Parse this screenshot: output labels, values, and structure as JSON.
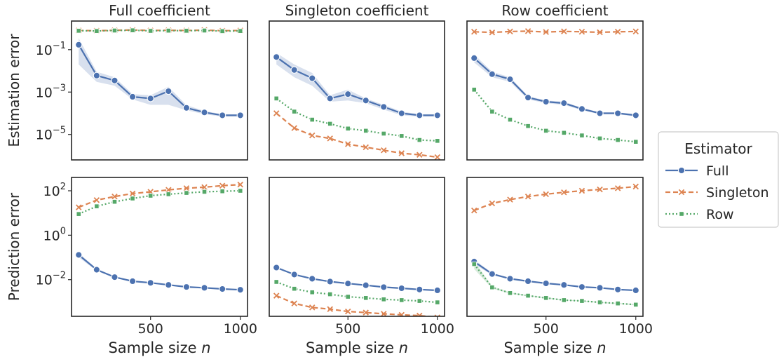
{
  "chart_data": {
    "type": "line",
    "x": [
      100,
      200,
      300,
      400,
      500,
      600,
      700,
      800,
      900,
      1000
    ],
    "xlabel": "Sample size n",
    "xticks": [
      500,
      1000
    ],
    "xlim": [
      60,
      1040
    ],
    "yscale": "log",
    "rows": [
      {
        "ylabel": "Estimation error",
        "ylog_lim": [
          -6.2,
          0.35
        ],
        "yticks": [
          {
            "exp": -1,
            "base": "10",
            "sup": "−1"
          },
          {
            "exp": -3,
            "base": "10",
            "sup": "−3"
          },
          {
            "exp": -5,
            "base": "10",
            "sup": "−5"
          }
        ]
      },
      {
        "ylabel": "Prediction error",
        "ylog_lim": [
          -3.65,
          2.6
        ],
        "yticks": [
          {
            "exp": 2,
            "base": "10",
            "sup": "2"
          },
          {
            "exp": 0,
            "base": "10",
            "sup": "0"
          },
          {
            "exp": -2,
            "base": "10",
            "sup": "−2"
          }
        ]
      }
    ],
    "columns": [
      "Full coefficient",
      "Singleton coefficient",
      "Row coefficient"
    ],
    "legend": {
      "title": "Estimator",
      "position": "center-right",
      "entries": [
        {
          "name": "Full",
          "color": "#4c72b0",
          "marker": "circle",
          "dash": "solid"
        },
        {
          "name": "Singleton",
          "color": "#dd8452",
          "marker": "x",
          "dash": "dashed"
        },
        {
          "name": "Row",
          "color": "#55a868",
          "marker": "square",
          "dash": "dotted"
        }
      ]
    },
    "panels": [
      {
        "row": 0,
        "col": 0,
        "series": [
          {
            "name": "Full",
            "values": [
              0.17,
              0.006,
              0.0035,
              0.0006,
              0.0005,
              0.0011,
              0.00018,
              0.00011,
              8e-05,
              8e-05
            ],
            "band_low": [
              0.02,
              0.003,
              0.002,
              0.00045,
              0.00025,
              0.00025,
              0.00014,
              9e-05,
              7e-05,
              7e-05
            ],
            "band_high": [
              0.35,
              0.009,
              0.005,
              0.0008,
              0.0007,
              0.0018,
              0.00024,
              0.00013,
              9e-05,
              9e-05
            ]
          },
          {
            "name": "Singleton",
            "values": [
              0.8,
              0.78,
              0.82,
              0.85,
              0.8,
              0.82,
              0.8,
              0.84,
              0.78,
              0.8
            ]
          },
          {
            "name": "Row",
            "values": [
              0.78,
              0.76,
              0.8,
              0.82,
              0.77,
              0.79,
              0.78,
              0.8,
              0.75,
              0.76
            ]
          }
        ]
      },
      {
        "row": 0,
        "col": 1,
        "series": [
          {
            "name": "Full",
            "values": [
              0.045,
              0.011,
              0.0045,
              0.0005,
              0.0008,
              0.0004,
              0.0002,
              0.0001,
              8e-05,
              8e-05
            ],
            "band_low": [
              0.02,
              0.005,
              0.002,
              0.00035,
              0.0004,
              0.0003,
              0.00015,
              8e-05,
              7e-05,
              7e-05
            ],
            "band_high": [
              0.07,
              0.02,
              0.008,
              0.0007,
              0.0013,
              0.0005,
              0.00025,
              0.00012,
              9e-05,
              9e-05
            ]
          },
          {
            "name": "Singleton",
            "values": [
              0.0001,
              2e-05,
              9e-06,
              6.5e-06,
              3.5e-06,
              2.5e-06,
              1.8e-06,
              1.3e-06,
              1.1e-06,
              8.5e-07
            ]
          },
          {
            "name": "Row",
            "values": [
              0.0005,
              0.00012,
              5e-05,
              3.2e-05,
              1.9e-05,
              1.5e-05,
              1.1e-05,
              8.5e-06,
              5.5e-06,
              5e-06
            ]
          }
        ]
      },
      {
        "row": 0,
        "col": 2,
        "series": [
          {
            "name": "Full",
            "values": [
              0.04,
              0.007,
              0.004,
              0.00055,
              0.00035,
              0.0003,
              0.00016,
              0.0001,
              0.0001,
              8e-05
            ],
            "band_low": [
              0.025,
              0.005,
              0.003,
              0.00045,
              0.0003,
              0.00025,
              0.00014,
              9e-05,
              9e-05,
              7e-05
            ],
            "band_high": [
              0.06,
              0.009,
              0.005,
              0.00065,
              0.0004,
              0.00035,
              0.00018,
              0.00011,
              0.00011,
              9e-05
            ]
          },
          {
            "name": "Singleton",
            "values": [
              0.7,
              0.65,
              0.72,
              0.75,
              0.68,
              0.73,
              0.7,
              0.66,
              0.7,
              0.72
            ]
          },
          {
            "name": "Row",
            "values": [
              0.0013,
              0.00012,
              5e-05,
              2.5e-05,
              1.5e-05,
              1.2e-05,
              9e-06,
              6.5e-06,
              5.5e-06,
              4.5e-06
            ]
          }
        ]
      },
      {
        "row": 1,
        "col": 0,
        "series": [
          {
            "name": "Full",
            "values": [
              0.13,
              0.028,
              0.013,
              0.0085,
              0.0072,
              0.0058,
              0.0047,
              0.0043,
              0.0038,
              0.0035
            ],
            "band_low": [
              0.1,
              0.025,
              0.012,
              0.008,
              0.0068,
              0.0055,
              0.0045,
              0.0041,
              0.0036,
              0.0033
            ],
            "band_high": [
              0.16,
              0.031,
              0.014,
              0.009,
              0.0076,
              0.0061,
              0.0049,
              0.0045,
              0.004,
              0.0037
            ]
          },
          {
            "name": "Singleton",
            "values": [
              18,
              38,
              55,
              75,
              90,
              110,
              130,
              145,
              170,
              190
            ]
          },
          {
            "name": "Row",
            "values": [
              9,
              20,
              32,
              45,
              60,
              70,
              80,
              90,
              95,
              100
            ]
          }
        ]
      },
      {
        "row": 1,
        "col": 1,
        "series": [
          {
            "name": "Full",
            "values": [
              0.035,
              0.017,
              0.011,
              0.0082,
              0.0067,
              0.0056,
              0.0046,
              0.0041,
              0.0036,
              0.0033
            ],
            "band_low": [
              0.032,
              0.016,
              0.0105,
              0.0078,
              0.0064,
              0.0054,
              0.0044,
              0.0039,
              0.0034,
              0.0031
            ],
            "band_high": [
              0.038,
              0.018,
              0.0115,
              0.0086,
              0.007,
              0.0058,
              0.0048,
              0.0043,
              0.0038,
              0.0035
            ]
          },
          {
            "name": "Singleton",
            "values": [
              0.0019,
              0.00085,
              0.00056,
              0.00047,
              0.00037,
              0.00033,
              0.00029,
              0.00026,
              0.00024,
              0.0002
            ]
          },
          {
            "name": "Row",
            "values": [
              0.0079,
              0.0039,
              0.0027,
              0.0022,
              0.0017,
              0.0015,
              0.0013,
              0.0012,
              0.0011,
              0.00095
            ]
          }
        ]
      },
      {
        "row": 1,
        "col": 2,
        "series": [
          {
            "name": "Full",
            "values": [
              0.065,
              0.018,
              0.011,
              0.0085,
              0.0068,
              0.0058,
              0.0047,
              0.0043,
              0.0036,
              0.0033
            ],
            "band_low": [
              0.05,
              0.016,
              0.0105,
              0.008,
              0.0065,
              0.0055,
              0.0045,
              0.0041,
              0.0034,
              0.0031
            ],
            "band_high": [
              0.08,
              0.02,
              0.0115,
              0.009,
              0.0071,
              0.0061,
              0.0049,
              0.0045,
              0.0038,
              0.0035
            ]
          },
          {
            "name": "Singleton",
            "values": [
              13,
              27,
              40,
              55,
              70,
              85,
              100,
              115,
              130,
              155
            ]
          },
          {
            "name": "Row",
            "values": [
              0.05,
              0.0045,
              0.0025,
              0.0019,
              0.0015,
              0.0012,
              0.0011,
              0.00095,
              0.00085,
              0.00075
            ],
            "band_low": [
              0.03,
              0.004,
              0.0023,
              0.0018,
              0.0014,
              0.00115,
              0.00105,
              0.0009,
              0.0008,
              0.0007
            ],
            "band_high": [
              0.07,
              0.005,
              0.0027,
              0.002,
              0.0016,
              0.00125,
              0.00115,
              0.001,
              0.0009,
              0.0008
            ]
          }
        ]
      }
    ]
  }
}
